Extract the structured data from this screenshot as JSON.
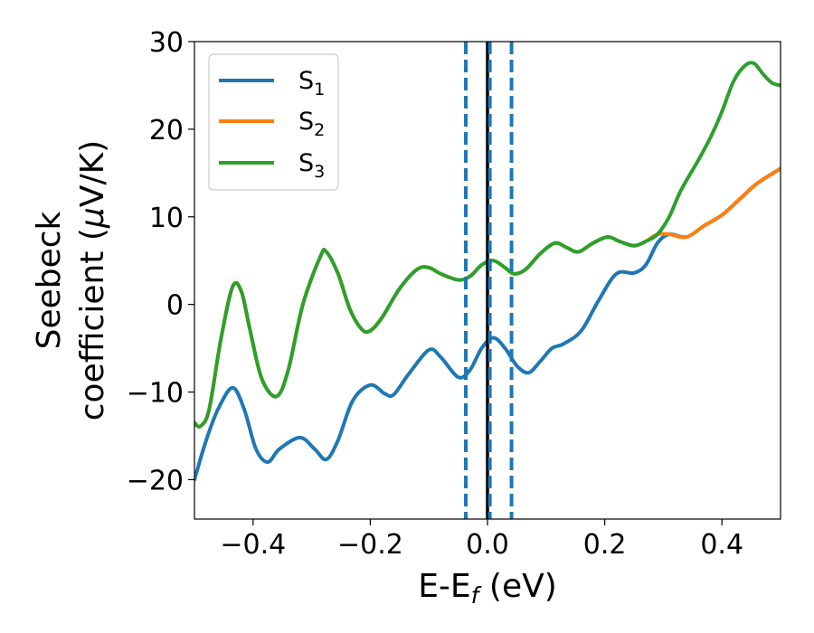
{
  "chart_data": {
    "type": "line",
    "xlabel": "E-E",
    "xlabel_sub": "f",
    "xlabel_unit": " (eV)",
    "ylabel_line1": "Seebeck",
    "ylabel_line2_prefix": "coefficient  (",
    "ylabel_mu": "μ",
    "ylabel_line2_suffix": "V/K)",
    "xlim": [
      -0.5,
      0.5
    ],
    "ylim": [
      -24.5,
      30
    ],
    "x_ticks": [
      -0.4,
      -0.2,
      0.0,
      0.2,
      0.4
    ],
    "x_tick_labels": [
      "−0.4",
      "−0.2",
      "0.0",
      "0.2",
      "0.4"
    ],
    "y_ticks": [
      -20,
      -10,
      0,
      10,
      20,
      30
    ],
    "y_tick_labels": [
      "−20",
      "−10",
      "0",
      "10",
      "20",
      "30"
    ],
    "legend_placement": "upper-left",
    "grid": false,
    "colors": {
      "s1": "#1f77b4",
      "s2": "#ff7f0e",
      "s3": "#2ca02c",
      "fermi": "#000000",
      "dashed": "#1f77b4"
    },
    "vertical_lines": [
      {
        "name": "fermi-level",
        "x": 0.0,
        "style": "solid",
        "color": "#000000"
      },
      {
        "name": "dashed-left",
        "x": -0.037,
        "style": "dashed",
        "color": "#1f77b4"
      },
      {
        "name": "dashed-mid",
        "x": 0.004,
        "style": "dashed",
        "color": "#1f77b4"
      },
      {
        "name": "dashed-right",
        "x": 0.041,
        "style": "dashed",
        "color": "#1f77b4"
      }
    ],
    "series": [
      {
        "name": "S",
        "sub": "1",
        "color": "#1f77b4",
        "points": [
          [
            -0.5,
            -20
          ],
          [
            -0.48,
            -15.5
          ],
          [
            -0.46,
            -12
          ],
          [
            -0.435,
            -9.5
          ],
          [
            -0.415,
            -12
          ],
          [
            -0.395,
            -16.5
          ],
          [
            -0.375,
            -18
          ],
          [
            -0.355,
            -16.5
          ],
          [
            -0.32,
            -15.2
          ],
          [
            -0.295,
            -16.5
          ],
          [
            -0.275,
            -17.7
          ],
          [
            -0.255,
            -15.5
          ],
          [
            -0.23,
            -11
          ],
          [
            -0.2,
            -9.2
          ],
          [
            -0.175,
            -10.2
          ],
          [
            -0.16,
            -10.3
          ],
          [
            -0.135,
            -8
          ],
          [
            -0.1,
            -5.2
          ],
          [
            -0.08,
            -6
          ],
          [
            -0.05,
            -8.3
          ],
          [
            -0.03,
            -7.5
          ],
          [
            -0.01,
            -5
          ],
          [
            0.01,
            -3.8
          ],
          [
            0.03,
            -5
          ],
          [
            0.05,
            -7
          ],
          [
            0.07,
            -7.8
          ],
          [
            0.09,
            -6.5
          ],
          [
            0.11,
            -5
          ],
          [
            0.13,
            -4.5
          ],
          [
            0.16,
            -3
          ],
          [
            0.19,
            0.5
          ],
          [
            0.22,
            3.5
          ],
          [
            0.25,
            3.6
          ],
          [
            0.27,
            4.5
          ],
          [
            0.29,
            7
          ],
          [
            0.31,
            8
          ],
          [
            0.34,
            7.7
          ],
          [
            0.37,
            9
          ],
          [
            0.4,
            10.2
          ],
          [
            0.43,
            12
          ],
          [
            0.46,
            13.8
          ],
          [
            0.5,
            15.5
          ]
        ]
      },
      {
        "name": "S",
        "sub": "2",
        "color": "#ff7f0e",
        "points": [
          [
            -0.5,
            -13.5
          ],
          [
            -0.49,
            -13.9
          ],
          [
            -0.475,
            -12
          ],
          [
            -0.455,
            -4
          ],
          [
            -0.435,
            2
          ],
          [
            -0.42,
            1.5
          ],
          [
            -0.405,
            -3
          ],
          [
            -0.385,
            -8.5
          ],
          [
            -0.36,
            -10.5
          ],
          [
            -0.34,
            -7.5
          ],
          [
            -0.315,
            0
          ],
          [
            -0.285,
            5.5
          ],
          [
            -0.275,
            6
          ],
          [
            -0.255,
            3.5
          ],
          [
            -0.235,
            -0.5
          ],
          [
            -0.215,
            -2.8
          ],
          [
            -0.2,
            -3
          ],
          [
            -0.18,
            -1.5
          ],
          [
            -0.15,
            1.8
          ],
          [
            -0.12,
            4
          ],
          [
            -0.1,
            4.2
          ],
          [
            -0.08,
            3.5
          ],
          [
            -0.05,
            2.8
          ],
          [
            -0.03,
            3.2
          ],
          [
            -0.01,
            4.5
          ],
          [
            0.01,
            5
          ],
          [
            0.03,
            4.2
          ],
          [
            0.045,
            3.5
          ],
          [
            0.065,
            4
          ],
          [
            0.09,
            5.8
          ],
          [
            0.115,
            7
          ],
          [
            0.135,
            6.5
          ],
          [
            0.155,
            6
          ],
          [
            0.18,
            7
          ],
          [
            0.205,
            7.7
          ],
          [
            0.225,
            7.2
          ],
          [
            0.25,
            6.7
          ],
          [
            0.27,
            7.2
          ],
          [
            0.29,
            8
          ],
          [
            0.31,
            8
          ],
          [
            0.34,
            7.7
          ],
          [
            0.37,
            9
          ],
          [
            0.4,
            10.2
          ],
          [
            0.43,
            12
          ],
          [
            0.46,
            13.8
          ],
          [
            0.5,
            15.5
          ]
        ]
      },
      {
        "name": "S",
        "sub": "3",
        "color": "#2ca02c",
        "points": [
          [
            -0.5,
            -13.5
          ],
          [
            -0.49,
            -13.9
          ],
          [
            -0.475,
            -12
          ],
          [
            -0.455,
            -4
          ],
          [
            -0.435,
            2
          ],
          [
            -0.42,
            1.5
          ],
          [
            -0.405,
            -3
          ],
          [
            -0.385,
            -8.5
          ],
          [
            -0.36,
            -10.5
          ],
          [
            -0.34,
            -7.5
          ],
          [
            -0.315,
            0
          ],
          [
            -0.285,
            5.5
          ],
          [
            -0.275,
            6
          ],
          [
            -0.255,
            3.5
          ],
          [
            -0.235,
            -0.5
          ],
          [
            -0.215,
            -2.8
          ],
          [
            -0.2,
            -3
          ],
          [
            -0.18,
            -1.5
          ],
          [
            -0.15,
            1.8
          ],
          [
            -0.12,
            4
          ],
          [
            -0.1,
            4.2
          ],
          [
            -0.08,
            3.5
          ],
          [
            -0.05,
            2.8
          ],
          [
            -0.03,
            3.2
          ],
          [
            -0.01,
            4.5
          ],
          [
            0.01,
            5
          ],
          [
            0.03,
            4.2
          ],
          [
            0.045,
            3.5
          ],
          [
            0.065,
            4
          ],
          [
            0.09,
            5.8
          ],
          [
            0.115,
            7
          ],
          [
            0.135,
            6.5
          ],
          [
            0.155,
            6
          ],
          [
            0.18,
            7
          ],
          [
            0.205,
            7.7
          ],
          [
            0.225,
            7.2
          ],
          [
            0.25,
            6.7
          ],
          [
            0.27,
            7.2
          ],
          [
            0.29,
            8
          ],
          [
            0.31,
            10
          ],
          [
            0.33,
            13
          ],
          [
            0.36,
            16.5
          ],
          [
            0.38,
            19
          ],
          [
            0.4,
            22
          ],
          [
            0.42,
            25.5
          ],
          [
            0.44,
            27.3
          ],
          [
            0.455,
            27.5
          ],
          [
            0.47,
            26.3
          ],
          [
            0.485,
            25.3
          ],
          [
            0.5,
            25
          ]
        ]
      }
    ]
  }
}
